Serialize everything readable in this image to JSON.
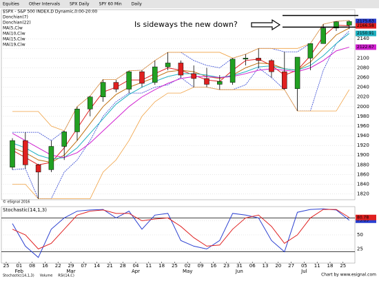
{
  "toolbar": [
    "Equities",
    "Other Intervals",
    "SPX Daily",
    "SPY 60 Min",
    "Daily"
  ],
  "footer": {
    "tabs": [
      "Stochastic(14,1,3)",
      "Volume",
      "RSI(14,C)"
    ],
    "credit": "Chart by www.esignal.com",
    "watermark": "© eSignal 2016"
  },
  "chart_data": {
    "type": "candlestick",
    "title": "$SPX - S&P 500 INDEX,D Dynamic,0:00-20:00",
    "annotation": "Is sideways the new down?",
    "annotation_lines": [
      2188,
      2164
    ],
    "categories": [
      "25",
      "01",
      "08",
      "16",
      "22",
      "29",
      "07",
      "14",
      "21",
      "28",
      "04",
      "11",
      "18",
      "25",
      "02",
      "09",
      "16",
      "23",
      "31",
      "06",
      "13",
      "20",
      "27",
      "05",
      "11",
      "18",
      "25"
    ],
    "months": [
      null,
      "Feb",
      null,
      null,
      null,
      "Mar",
      null,
      null,
      null,
      null,
      "Apr",
      null,
      null,
      null,
      "May",
      null,
      null,
      null,
      "Jun",
      null,
      null,
      null,
      null,
      "Jul",
      null,
      null,
      null
    ],
    "ylim": [
      1808,
      2200
    ],
    "yticks": [
      1820,
      1840,
      1860,
      1880,
      1900,
      1920,
      1940,
      1960,
      1980,
      2000,
      2020,
      2040,
      2060,
      2080,
      2100,
      2120,
      2140
    ],
    "grid": true,
    "up_color": "#22a022",
    "down_color": "#e02020",
    "ohlc": {
      "open": [
        1875,
        1930,
        1880,
        1870,
        1918,
        1948,
        1995,
        2020,
        2050,
        2036,
        2072,
        2050,
        2082,
        2090,
        2068,
        2058,
        2046,
        2050,
        2098,
        2100,
        2095,
        2072,
        2037,
        2100,
        2130,
        2162,
        2168
      ],
      "high": [
        1935,
        1947,
        1882,
        1930,
        1950,
        2000,
        2022,
        2056,
        2055,
        2074,
        2075,
        2095,
        2112,
        2095,
        2085,
        2080,
        2065,
        2100,
        2108,
        2120,
        2098,
        2113,
        2102,
        2130,
        2170,
        2176,
        2178
      ],
      "low": [
        1870,
        1872,
        1810,
        1865,
        1890,
        1930,
        1980,
        2010,
        2030,
        2028,
        2040,
        2045,
        2075,
        2060,
        2040,
        2040,
        2035,
        2045,
        2085,
        2080,
        2060,
        2035,
        1991,
        2075,
        2130,
        2156,
        2160
      ],
      "close": [
        1930,
        1880,
        1865,
        1918,
        1948,
        1995,
        2020,
        2050,
        2036,
        2072,
        2048,
        2082,
        2090,
        2065,
        2058,
        2046,
        2052,
        2098,
        2100,
        2095,
        2072,
        2037,
        2102,
        2130,
        2162,
        2175,
        2175.63
      ]
    },
    "bands": [
      {
        "name": "Donchian(7)",
        "color": "#2a3fd0",
        "upper": [
          1947,
          1947,
          1947,
          1930,
          1950,
          2000,
          2022,
          2056,
          2056,
          2074,
          2075,
          2095,
          2112,
          2112,
          2095,
          2085,
          2080,
          2100,
          2108,
          2120,
          2120,
          2113,
          2113,
          2130,
          2170,
          2176,
          2178
        ],
        "lower": [
          1870,
          1872,
          1810,
          1810,
          1865,
          1890,
          1930,
          1980,
          2010,
          2028,
          2028,
          2040,
          2045,
          2060,
          2040,
          2040,
          2035,
          2035,
          2045,
          2080,
          2060,
          2035,
          1991,
          1991,
          2075,
          2130,
          2156
        ]
      },
      {
        "name": "Donchian(22)",
        "color": "#f0a040",
        "upper": [
          1990,
          1990,
          1990,
          1960,
          1950,
          2000,
          2022,
          2056,
          2056,
          2074,
          2075,
          2095,
          2112,
          2112,
          2112,
          2112,
          2112,
          2100,
          2108,
          2120,
          2120,
          2120,
          2120,
          2130,
          2170,
          2176,
          2178
        ],
        "lower": [
          1840,
          1840,
          1810,
          1810,
          1810,
          1810,
          1810,
          1865,
          1890,
          1930,
          1980,
          2010,
          2028,
          2028,
          2040,
          2040,
          2035,
          2035,
          2035,
          2035,
          2035,
          2035,
          1991,
          1991,
          1991,
          1991,
          2035
        ]
      }
    ],
    "series": [
      {
        "name": "MA(5,C)w",
        "color": "#e02020",
        "values": [
          1910,
          1895,
          1880,
          1885,
          1915,
          1955,
          1995,
          2030,
          2040,
          2055,
          2055,
          2068,
          2080,
          2075,
          2065,
          2055,
          2052,
          2075,
          2095,
          2098,
          2085,
          2065,
          2075,
          2105,
          2145,
          2168,
          2166.58
        ]
      },
      {
        "name": "MA(10,C)w",
        "color": "#c07010",
        "values": [
          1915,
          1905,
          1890,
          1885,
          1900,
          1930,
          1965,
          2000,
          2025,
          2040,
          2050,
          2060,
          2072,
          2075,
          2072,
          2062,
          2058,
          2065,
          2080,
          2090,
          2088,
          2078,
          2075,
          2092,
          2120,
          2148,
          2162
        ]
      },
      {
        "name": "MA(15,C)w",
        "color": "#20b0c0",
        "values": [
          1925,
          1915,
          1900,
          1892,
          1895,
          1915,
          1945,
          1975,
          2005,
          2025,
          2040,
          2052,
          2062,
          2068,
          2068,
          2065,
          2060,
          2064,
          2072,
          2082,
          2084,
          2078,
          2075,
          2085,
          2105,
          2130,
          2150.91
        ]
      },
      {
        "name": "MA(19,C)w",
        "color": "#d020d0",
        "values": [
          1945,
          1930,
          1915,
          1900,
          1895,
          1905,
          1925,
          1950,
          1975,
          2000,
          2020,
          2035,
          2048,
          2058,
          2062,
          2062,
          2060,
          2062,
          2068,
          2075,
          2078,
          2075,
          2072,
          2080,
          2095,
          2115,
          2122.67
        ]
      }
    ],
    "stochastic": {
      "title": "Stochastic(14,1,3)",
      "ylim": [
        0,
        100
      ],
      "yticks": [
        25,
        50,
        75
      ],
      "levels": [
        20,
        80
      ],
      "series": [
        {
          "color": "#2a3fd0",
          "values": [
            70,
            30,
            10,
            60,
            80,
            92,
            94,
            95,
            80,
            92,
            60,
            85,
            88,
            40,
            30,
            25,
            40,
            88,
            85,
            80,
            40,
            20,
            90,
            95,
            96,
            94,
            75.89
          ]
        },
        {
          "color": "#e02020",
          "values": [
            60,
            50,
            25,
            35,
            60,
            85,
            92,
            94,
            88,
            88,
            75,
            78,
            80,
            65,
            45,
            30,
            32,
            60,
            80,
            85,
            65,
            35,
            50,
            80,
            95,
            95,
            80.78
          ]
        }
      ]
    }
  }
}
